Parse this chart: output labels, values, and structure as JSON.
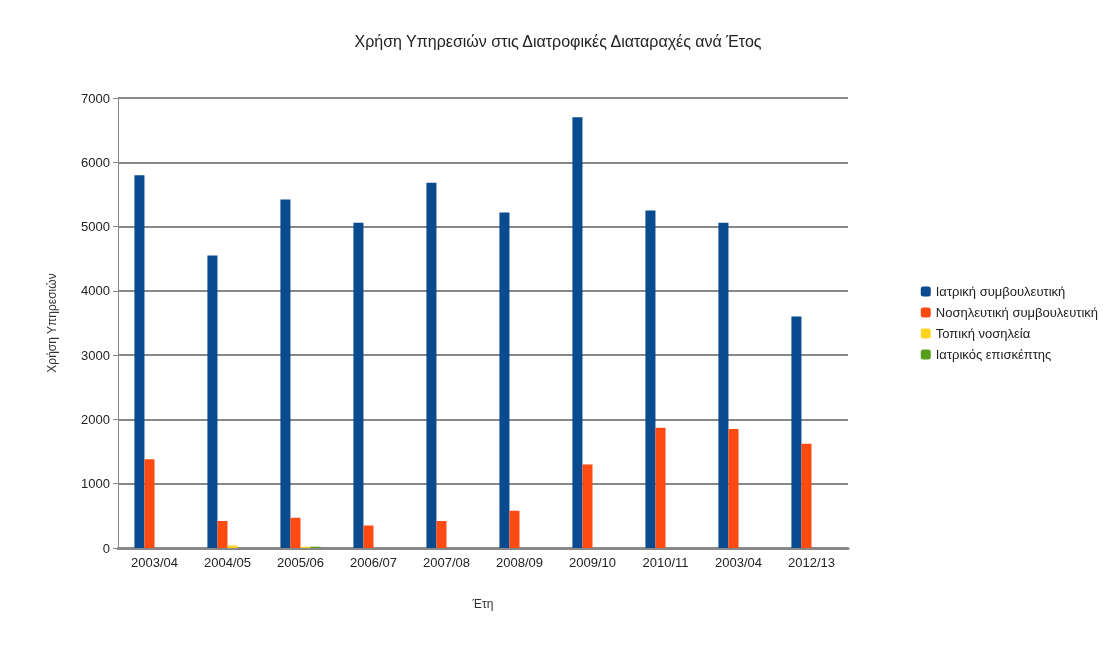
{
  "chart_data": {
    "type": "bar",
    "title": "Χρήση Υπηρεσιών στις Διατροφικές Διαταραχές ανά Έτος",
    "xlabel": "Έτη",
    "ylabel": "Χρήση Υπηρεσιών",
    "categories": [
      "2003/04",
      "2004/05",
      "2005/06",
      "2006/07",
      "2007/08",
      "2008/09",
      "2009/10",
      "2010/11",
      "2003/04",
      "2012/13"
    ],
    "series": [
      {
        "name": "Ιατρική συμβουλευτική",
        "color": "#0a4a8f",
        "values": [
          5800,
          4550,
          5420,
          5060,
          5680,
          5220,
          6700,
          5250,
          5060,
          3600
        ]
      },
      {
        "name": "Νοσηλευτική συμβουλευτική",
        "color": "#ff4a12",
        "values": [
          1380,
          420,
          470,
          350,
          420,
          580,
          1300,
          1870,
          1850,
          1620
        ]
      },
      {
        "name": "Τοπική νοσηλεία",
        "color": "#ffd320",
        "values": [
          0,
          40,
          20,
          0,
          0,
          0,
          0,
          0,
          0,
          0
        ]
      },
      {
        "name": "Ιατρικός επισκέπτης",
        "color": "#579d1c",
        "values": [
          0,
          0,
          20,
          0,
          0,
          0,
          0,
          0,
          0,
          0
        ]
      }
    ],
    "ylim": [
      0,
      7000
    ],
    "yticks": [
      0,
      1000,
      2000,
      3000,
      4000,
      5000,
      6000,
      7000
    ],
    "grid": "y",
    "legend": "right"
  }
}
